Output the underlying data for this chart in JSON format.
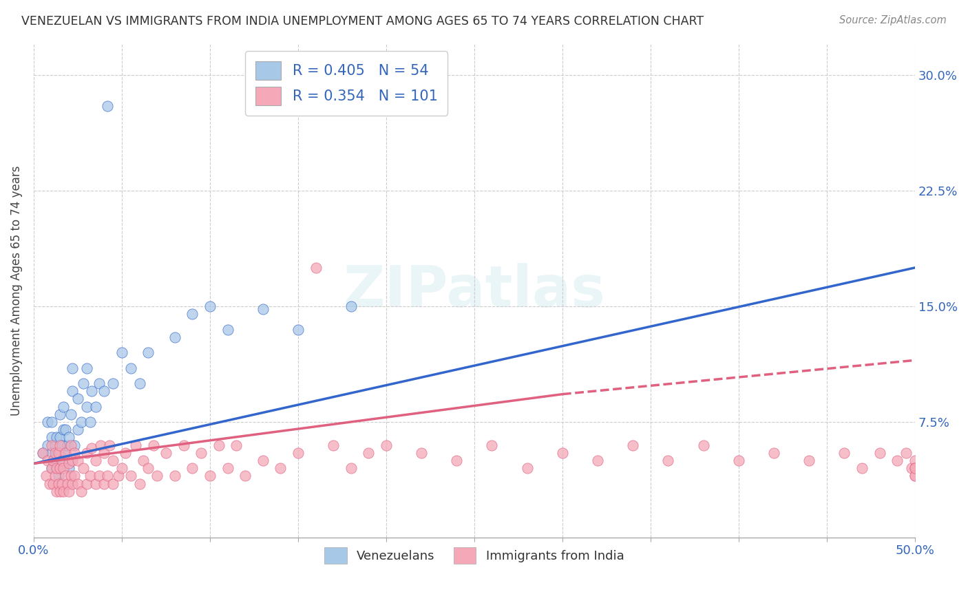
{
  "title": "VENEZUELAN VS IMMIGRANTS FROM INDIA UNEMPLOYMENT AMONG AGES 65 TO 74 YEARS CORRELATION CHART",
  "source": "Source: ZipAtlas.com",
  "ylabel": "Unemployment Among Ages 65 to 74 years",
  "xlim": [
    0.0,
    0.5
  ],
  "ylim": [
    0.0,
    0.32
  ],
  "xticks": [
    0.0,
    0.05,
    0.1,
    0.15,
    0.2,
    0.25,
    0.3,
    0.35,
    0.4,
    0.45,
    0.5
  ],
  "xtick_labels": [
    "0.0%",
    "",
    "",
    "",
    "",
    "",
    "",
    "",
    "",
    "",
    "50.0%"
  ],
  "ytick_positions": [
    0.0,
    0.075,
    0.15,
    0.225,
    0.3
  ],
  "ytick_labels": [
    "",
    "7.5%",
    "15.0%",
    "22.5%",
    "30.0%"
  ],
  "legend_r1": "R = 0.405",
  "legend_n1": "N = 54",
  "legend_r2": "R = 0.354",
  "legend_n2": "N = 101",
  "venezuelan_color": "#a8c8e8",
  "india_color": "#f4a8b8",
  "trend_blue": "#3366cc",
  "trend_pink": "#e06080",
  "background_color": "#ffffff",
  "blue_trend_x0": 0.0,
  "blue_trend_y0": 0.048,
  "blue_trend_x1": 0.5,
  "blue_trend_y1": 0.175,
  "pink_trend_solid_x0": 0.0,
  "pink_trend_solid_y0": 0.048,
  "pink_trend_solid_x1": 0.3,
  "pink_trend_solid_y1": 0.093,
  "pink_trend_dash_x0": 0.3,
  "pink_trend_dash_y0": 0.093,
  "pink_trend_dash_x1": 0.5,
  "pink_trend_dash_y1": 0.115,
  "venezuelan_x": [
    0.005,
    0.008,
    0.008,
    0.01,
    0.01,
    0.01,
    0.01,
    0.012,
    0.012,
    0.013,
    0.013,
    0.013,
    0.014,
    0.015,
    0.015,
    0.015,
    0.015,
    0.016,
    0.016,
    0.017,
    0.017,
    0.018,
    0.018,
    0.019,
    0.02,
    0.02,
    0.021,
    0.022,
    0.022,
    0.023,
    0.025,
    0.025,
    0.027,
    0.028,
    0.03,
    0.03,
    0.032,
    0.033,
    0.035,
    0.037,
    0.04,
    0.042,
    0.045,
    0.05,
    0.055,
    0.06,
    0.065,
    0.08,
    0.09,
    0.1,
    0.11,
    0.13,
    0.15,
    0.18
  ],
  "venezuelan_y": [
    0.055,
    0.06,
    0.075,
    0.045,
    0.055,
    0.065,
    0.075,
    0.05,
    0.06,
    0.045,
    0.055,
    0.065,
    0.04,
    0.045,
    0.055,
    0.065,
    0.08,
    0.05,
    0.06,
    0.07,
    0.085,
    0.055,
    0.07,
    0.06,
    0.045,
    0.065,
    0.08,
    0.095,
    0.11,
    0.06,
    0.07,
    0.09,
    0.075,
    0.1,
    0.085,
    0.11,
    0.075,
    0.095,
    0.085,
    0.1,
    0.095,
    0.28,
    0.1,
    0.12,
    0.11,
    0.1,
    0.12,
    0.13,
    0.145,
    0.15,
    0.135,
    0.148,
    0.135,
    0.15
  ],
  "india_x": [
    0.005,
    0.007,
    0.008,
    0.009,
    0.01,
    0.01,
    0.011,
    0.011,
    0.012,
    0.012,
    0.013,
    0.013,
    0.014,
    0.014,
    0.015,
    0.015,
    0.015,
    0.016,
    0.016,
    0.017,
    0.017,
    0.018,
    0.018,
    0.019,
    0.02,
    0.02,
    0.021,
    0.021,
    0.022,
    0.022,
    0.023,
    0.023,
    0.025,
    0.025,
    0.027,
    0.028,
    0.03,
    0.03,
    0.032,
    0.033,
    0.035,
    0.035,
    0.037,
    0.038,
    0.04,
    0.04,
    0.042,
    0.043,
    0.045,
    0.045,
    0.048,
    0.05,
    0.052,
    0.055,
    0.058,
    0.06,
    0.062,
    0.065,
    0.068,
    0.07,
    0.075,
    0.08,
    0.085,
    0.09,
    0.095,
    0.1,
    0.105,
    0.11,
    0.115,
    0.12,
    0.13,
    0.14,
    0.15,
    0.16,
    0.17,
    0.18,
    0.19,
    0.2,
    0.22,
    0.24,
    0.26,
    0.28,
    0.3,
    0.32,
    0.34,
    0.36,
    0.38,
    0.4,
    0.42,
    0.44,
    0.46,
    0.47,
    0.48,
    0.49,
    0.495,
    0.498,
    0.5,
    0.5,
    0.5,
    0.5,
    0.5
  ],
  "india_y": [
    0.055,
    0.04,
    0.05,
    0.035,
    0.045,
    0.06,
    0.035,
    0.05,
    0.04,
    0.055,
    0.03,
    0.045,
    0.035,
    0.055,
    0.03,
    0.045,
    0.06,
    0.035,
    0.05,
    0.03,
    0.045,
    0.04,
    0.055,
    0.035,
    0.03,
    0.048,
    0.04,
    0.06,
    0.035,
    0.05,
    0.04,
    0.055,
    0.035,
    0.05,
    0.03,
    0.045,
    0.035,
    0.055,
    0.04,
    0.058,
    0.035,
    0.05,
    0.04,
    0.06,
    0.035,
    0.055,
    0.04,
    0.06,
    0.035,
    0.05,
    0.04,
    0.045,
    0.055,
    0.04,
    0.06,
    0.035,
    0.05,
    0.045,
    0.06,
    0.04,
    0.055,
    0.04,
    0.06,
    0.045,
    0.055,
    0.04,
    0.06,
    0.045,
    0.06,
    0.04,
    0.05,
    0.045,
    0.055,
    0.175,
    0.06,
    0.045,
    0.055,
    0.06,
    0.055,
    0.05,
    0.06,
    0.045,
    0.055,
    0.05,
    0.06,
    0.05,
    0.06,
    0.05,
    0.055,
    0.05,
    0.055,
    0.045,
    0.055,
    0.05,
    0.055,
    0.045,
    0.04,
    0.05,
    0.045,
    0.04,
    0.045
  ]
}
